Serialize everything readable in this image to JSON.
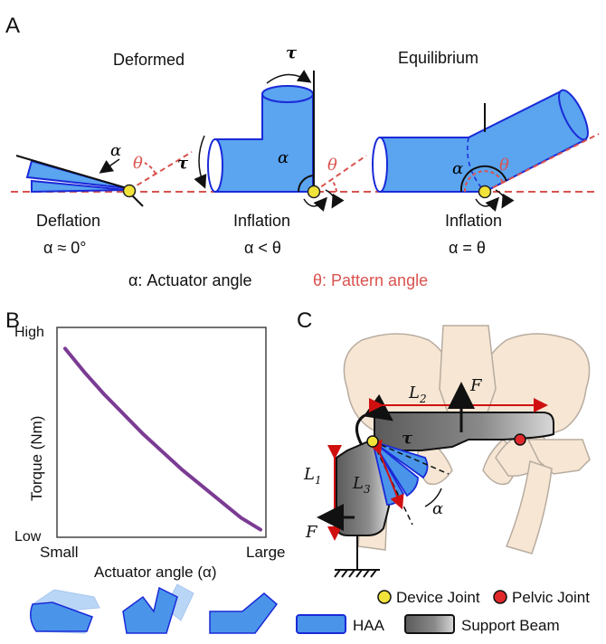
{
  "panels": {
    "a": "A",
    "b": "B",
    "c": "C"
  },
  "panel_a": {
    "deformed": "Deformed",
    "equilibrium": "Equilibrium",
    "alpha": "α",
    "theta": "θ",
    "tau": "τ",
    "states": [
      {
        "name": "Deflation",
        "relation": "α ≈ 0°"
      },
      {
        "name": "Inflation",
        "relation": "α < θ"
      },
      {
        "name": "Inflation",
        "relation": "α = θ"
      }
    ],
    "legend_alpha": "α: Actuator angle",
    "legend_theta": "θ: Pattern angle"
  },
  "chart_data": {
    "type": "line",
    "xlabel": "Actuator angle (α)",
    "ylabel": "Torque (Nm)",
    "x_ticks": [
      "Small",
      "Large"
    ],
    "y_ticks": [
      "Low",
      "High"
    ],
    "series": [
      {
        "x": [
          0.0,
          0.1,
          0.2,
          0.3,
          0.4,
          0.5,
          0.6,
          0.7,
          0.8,
          0.9,
          1.0
        ],
        "y": [
          0.93,
          0.81,
          0.7,
          0.6,
          0.5,
          0.41,
          0.32,
          0.24,
          0.16,
          0.08,
          0.02
        ]
      }
    ],
    "color": "#7b3b94"
  },
  "panel_c": {
    "l1": "L",
    "l1_sub": "1",
    "l2": "L",
    "l2_sub": "2",
    "l3": "L",
    "l3_sub": "3",
    "force": "F",
    "tau": "τ",
    "alpha": "α",
    "legend": {
      "device_joint": "Device Joint",
      "pelvic_joint": "Pelvic Joint",
      "haa": "HAA",
      "support_beam": "Support Beam"
    }
  },
  "colors": {
    "actuator_fill": "#5aa4f0",
    "actuator_stroke": "#1a2ad8",
    "pattern_red": "#d9534f",
    "joint_yellow": "#f2e33a",
    "pelvic_red": "#e0292b",
    "bone": "#f6e6d3",
    "beam": "#777777"
  }
}
